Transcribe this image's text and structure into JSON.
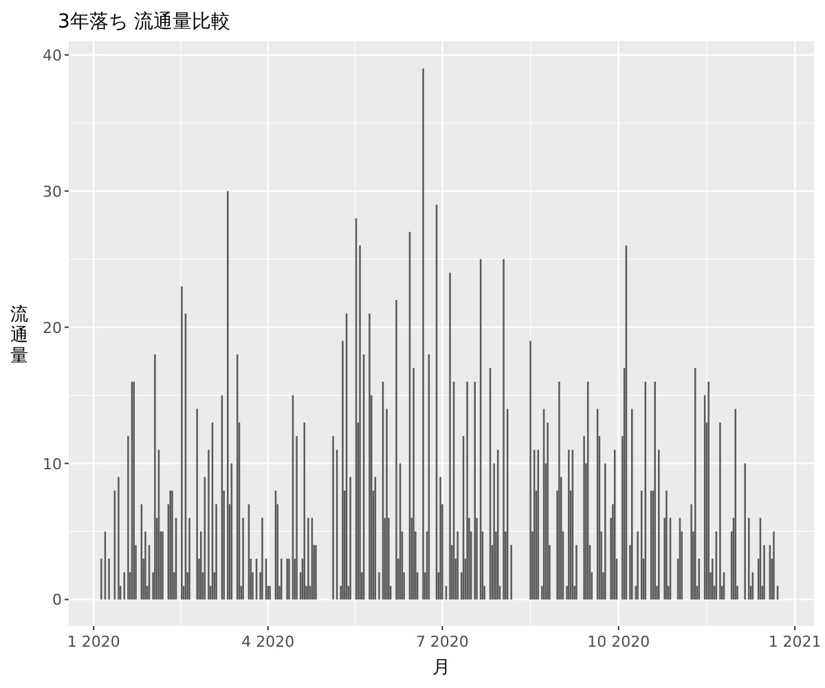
{
  "chart_data": {
    "type": "bar",
    "title": "3年落ち 流通量比較",
    "xlabel": "月",
    "ylabel": "流通量",
    "color": "#595959",
    "grid": true,
    "xlim": [
      "2019-12-19",
      "2021-01-11"
    ],
    "xticks": [
      {
        "value": "2020-01-01",
        "label": "1 2020"
      },
      {
        "value": "2020-04-01",
        "label": "4 2020"
      },
      {
        "value": "2020-07-01",
        "label": "7 2020"
      },
      {
        "value": "2020-10-01",
        "label": "10 2020"
      },
      {
        "value": "2021-01-01",
        "label": "1 2021"
      }
    ],
    "ylim": [
      -1.95,
      41
    ],
    "yticks": [
      0,
      10,
      20,
      30,
      40
    ],
    "x": [
      "2020-01-05",
      "2020-01-07",
      "2020-01-09",
      "2020-01-12",
      "2020-01-14",
      "2020-01-15",
      "2020-01-17",
      "2020-01-19",
      "2020-01-20",
      "2020-01-21",
      "2020-01-22",
      "2020-01-23",
      "2020-01-26",
      "2020-01-27",
      "2020-01-28",
      "2020-01-29",
      "2020-01-30",
      "2020-02-01",
      "2020-02-02",
      "2020-02-03",
      "2020-02-04",
      "2020-02-05",
      "2020-02-06",
      "2020-02-09",
      "2020-02-10",
      "2020-02-11",
      "2020-02-12",
      "2020-02-13",
      "2020-02-16",
      "2020-02-17",
      "2020-02-18",
      "2020-02-19",
      "2020-02-20",
      "2020-02-24",
      "2020-02-25",
      "2020-02-26",
      "2020-02-27",
      "2020-02-28",
      "2020-03-01",
      "2020-03-02",
      "2020-03-03",
      "2020-03-04",
      "2020-03-05",
      "2020-03-08",
      "2020-03-09",
      "2020-03-11",
      "2020-03-12",
      "2020-03-13",
      "2020-03-16",
      "2020-03-17",
      "2020-03-18",
      "2020-03-19",
      "2020-03-22",
      "2020-03-23",
      "2020-03-24",
      "2020-03-26",
      "2020-03-28",
      "2020-03-29",
      "2020-03-31",
      "2020-04-01",
      "2020-04-02",
      "2020-04-05",
      "2020-04-06",
      "2020-04-07",
      "2020-04-08",
      "2020-04-11",
      "2020-04-12",
      "2020-04-14",
      "2020-04-15",
      "2020-04-16",
      "2020-04-18",
      "2020-04-19",
      "2020-04-20",
      "2020-04-21",
      "2020-04-22",
      "2020-04-23",
      "2020-04-24",
      "2020-04-25",
      "2020-04-26",
      "2020-05-05",
      "2020-05-07",
      "2020-05-09",
      "2020-05-10",
      "2020-05-11",
      "2020-05-12",
      "2020-05-13",
      "2020-05-14",
      "2020-05-17",
      "2020-05-18",
      "2020-05-19",
      "2020-05-20",
      "2020-05-21",
      "2020-05-24",
      "2020-05-25",
      "2020-05-26",
      "2020-05-27",
      "2020-05-29",
      "2020-05-31",
      "2020-06-01",
      "2020-06-02",
      "2020-06-03",
      "2020-06-04",
      "2020-06-07",
      "2020-06-08",
      "2020-06-09",
      "2020-06-10",
      "2020-06-11",
      "2020-06-14",
      "2020-06-15",
      "2020-06-16",
      "2020-06-17",
      "2020-06-18",
      "2020-06-21",
      "2020-06-22",
      "2020-06-23",
      "2020-06-24",
      "2020-06-28",
      "2020-06-29",
      "2020-06-30",
      "2020-07-01",
      "2020-07-03",
      "2020-07-05",
      "2020-07-06",
      "2020-07-07",
      "2020-07-08",
      "2020-07-09",
      "2020-07-11",
      "2020-07-12",
      "2020-07-13",
      "2020-07-14",
      "2020-07-15",
      "2020-07-16",
      "2020-07-18",
      "2020-07-19",
      "2020-07-21",
      "2020-07-22",
      "2020-07-23",
      "2020-07-26",
      "2020-07-27",
      "2020-07-28",
      "2020-07-29",
      "2020-07-30",
      "2020-07-31",
      "2020-08-02",
      "2020-08-03",
      "2020-08-04",
      "2020-08-06",
      "2020-08-16",
      "2020-08-17",
      "2020-08-18",
      "2020-08-19",
      "2020-08-20",
      "2020-08-22",
      "2020-08-23",
      "2020-08-24",
      "2020-08-25",
      "2020-08-26",
      "2020-08-30",
      "2020-08-31",
      "2020-09-01",
      "2020-09-02",
      "2020-09-04",
      "2020-09-05",
      "2020-09-06",
      "2020-09-07",
      "2020-09-08",
      "2020-09-09",
      "2020-09-13",
      "2020-09-14",
      "2020-09-15",
      "2020-09-16",
      "2020-09-17",
      "2020-09-20",
      "2020-09-21",
      "2020-09-22",
      "2020-09-23",
      "2020-09-24",
      "2020-09-27",
      "2020-09-28",
      "2020-09-29",
      "2020-09-30",
      "2020-10-03",
      "2020-10-04",
      "2020-10-05",
      "2020-10-07",
      "2020-10-08",
      "2020-10-10",
      "2020-10-11",
      "2020-10-13",
      "2020-10-14",
      "2020-10-15",
      "2020-10-18",
      "2020-10-19",
      "2020-10-20",
      "2020-10-21",
      "2020-10-22",
      "2020-10-25",
      "2020-10-26",
      "2020-10-27",
      "2020-10-28",
      "2020-11-01",
      "2020-11-02",
      "2020-11-03",
      "2020-11-08",
      "2020-11-09",
      "2020-11-10",
      "2020-11-11",
      "2020-11-12",
      "2020-11-15",
      "2020-11-16",
      "2020-11-17",
      "2020-11-18",
      "2020-11-19",
      "2020-11-20",
      "2020-11-21",
      "2020-11-23",
      "2020-11-24",
      "2020-11-25",
      "2020-11-29",
      "2020-11-30",
      "2020-12-01",
      "2020-12-02",
      "2020-12-06",
      "2020-12-08",
      "2020-12-09",
      "2020-12-10",
      "2020-12-13",
      "2020-12-14",
      "2020-12-15",
      "2020-12-16",
      "2020-12-19",
      "2020-12-20",
      "2020-12-21",
      "2020-12-23"
    ],
    "values": [
      3,
      5,
      3,
      8,
      9,
      1,
      2,
      12,
      2,
      16,
      16,
      4,
      7,
      3,
      5,
      1,
      4,
      2,
      18,
      6,
      11,
      5,
      5,
      7,
      8,
      8,
      2,
      6,
      23,
      1,
      21,
      2,
      6,
      14,
      3,
      5,
      2,
      9,
      11,
      1,
      13,
      2,
      7,
      15,
      8,
      30,
      7,
      10,
      18,
      13,
      1,
      6,
      7,
      3,
      2,
      3,
      2,
      6,
      3,
      1,
      1,
      8,
      7,
      1,
      3,
      3,
      3,
      15,
      3,
      12,
      2,
      3,
      13,
      1,
      6,
      1,
      6,
      4,
      4,
      12,
      11,
      1,
      19,
      8,
      21,
      1,
      9,
      28,
      13,
      26,
      2,
      18,
      21,
      15,
      8,
      9,
      2,
      16,
      6,
      14,
      6,
      1,
      22,
      3,
      10,
      5,
      2,
      27,
      6,
      17,
      5,
      2,
      39,
      2,
      5,
      18,
      29,
      2,
      9,
      7,
      1,
      24,
      4,
      16,
      3,
      5,
      2,
      12,
      3,
      16,
      6,
      5,
      16,
      6,
      25,
      5,
      1,
      17,
      4,
      10,
      5,
      11,
      1,
      25,
      5,
      14,
      4,
      19,
      5,
      11,
      8,
      11,
      1,
      14,
      10,
      13,
      4,
      8,
      16,
      9,
      5,
      1,
      11,
      8,
      11,
      1,
      4,
      12,
      10,
      16,
      4,
      2,
      14,
      12,
      5,
      2,
      10,
      6,
      7,
      11,
      3,
      12,
      17,
      26,
      4,
      14,
      1,
      5,
      8,
      3,
      16,
      8,
      8,
      16,
      1,
      11,
      6,
      8,
      1,
      6,
      3,
      6,
      5,
      7,
      5,
      17,
      1,
      3,
      15,
      13,
      16,
      2,
      3,
      1,
      5,
      13,
      1,
      2,
      5,
      6,
      14,
      1,
      10,
      6,
      1,
      2,
      3,
      6,
      1,
      4,
      4,
      3,
      5,
      1
    ]
  }
}
